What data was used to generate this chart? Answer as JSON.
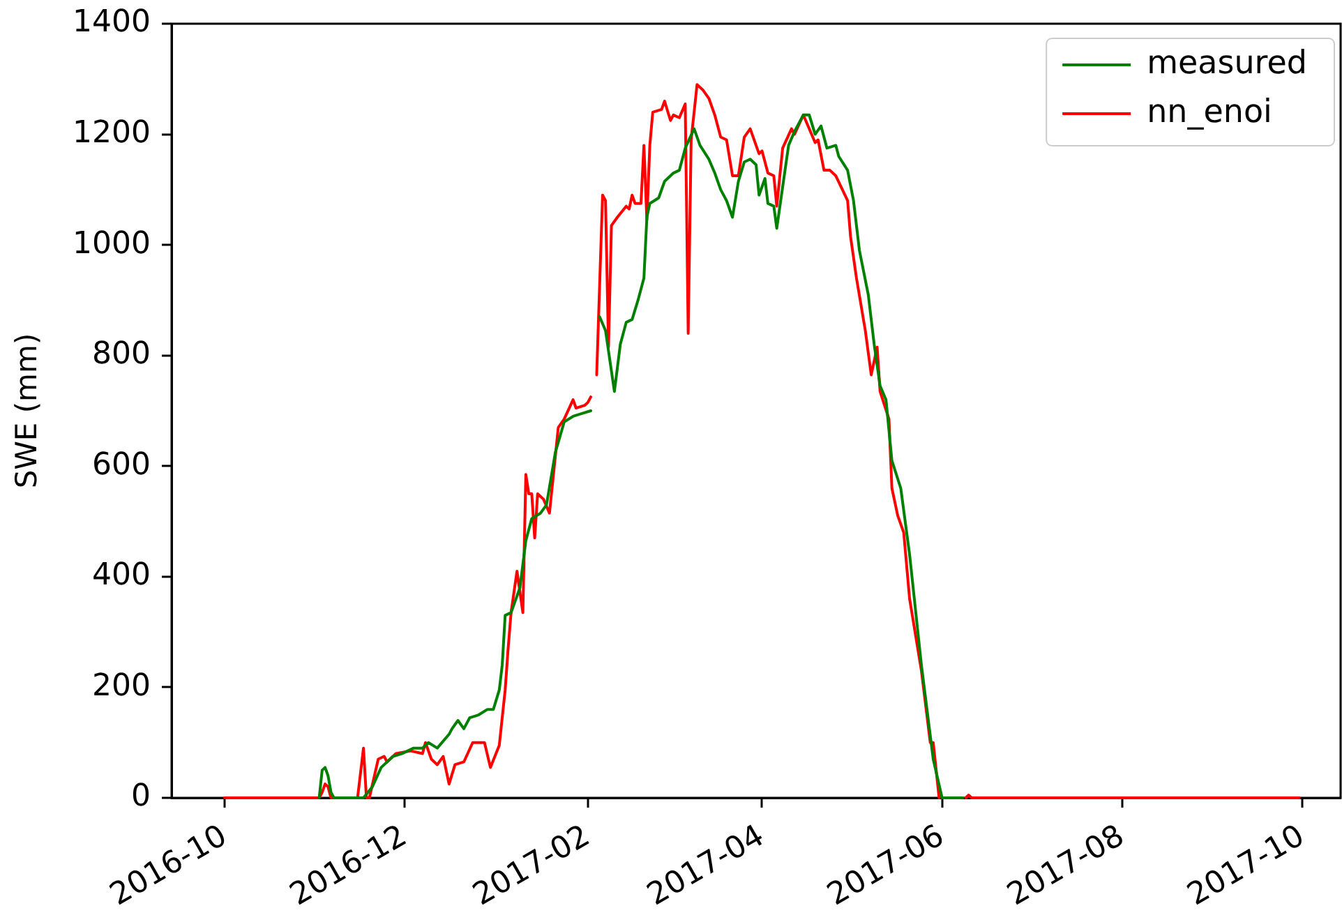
{
  "chart_data": {
    "type": "line",
    "ylabel": "SWE (mm)",
    "xlim": [
      "2016-09-13",
      "2017-10-14"
    ],
    "xticks": [
      "2016-10",
      "2016-12",
      "2017-02",
      "2017-04",
      "2017-06",
      "2017-08",
      "2017-10"
    ],
    "ylim": [
      0,
      1400
    ],
    "yticks": [
      0,
      200,
      400,
      600,
      800,
      1000,
      1200,
      1400
    ],
    "legend": "top right",
    "series": [
      {
        "name": "measured",
        "color": "#008000",
        "x": [
          "2016-11-02",
          "2016-11-03",
          "2016-11-04",
          "2016-11-05",
          "2016-11-06",
          "2016-11-07",
          "2016-11-17",
          "2016-11-20",
          "2016-11-23",
          "2016-11-27",
          "2016-11-30",
          "2016-12-04",
          "2016-12-07",
          "2016-12-09",
          "2016-12-12",
          "2016-12-16",
          "2016-12-17",
          "2016-12-19",
          "2016-12-21",
          "2016-12-23",
          "2016-12-26",
          "2016-12-29",
          "2016-12-31",
          "2017-01-02",
          "2017-01-03",
          "2017-01-04",
          "2017-01-06",
          "2017-01-08",
          "2017-01-09",
          "2017-01-11",
          "2017-01-13",
          "2017-01-16",
          "2017-01-18",
          "2017-01-21",
          "2017-01-24",
          "2017-01-27",
          "2017-01-30",
          "2017-02-02",
          "2017-02-03",
          "2017-02-05",
          "2017-02-07",
          "2017-02-10",
          "2017-02-12",
          "2017-02-14",
          "2017-02-16",
          "2017-02-18",
          "2017-02-20",
          "2017-02-21",
          "2017-02-22",
          "2017-02-25",
          "2017-02-27",
          "2017-03-02",
          "2017-03-04",
          "2017-03-06",
          "2017-03-09",
          "2017-03-11",
          "2017-03-14",
          "2017-03-16",
          "2017-03-18",
          "2017-03-20",
          "2017-03-22",
          "2017-03-24",
          "2017-03-26",
          "2017-03-28",
          "2017-03-30",
          "2017-03-31",
          "2017-04-02",
          "2017-04-03",
          "2017-04-05",
          "2017-04-06",
          "2017-04-08",
          "2017-04-10",
          "2017-04-12",
          "2017-04-15",
          "2017-04-17",
          "2017-04-19",
          "2017-04-21",
          "2017-04-23",
          "2017-04-26",
          "2017-04-27",
          "2017-04-30",
          "2017-05-02",
          "2017-05-04",
          "2017-05-07",
          "2017-05-09",
          "2017-05-11",
          "2017-05-13",
          "2017-05-15",
          "2017-05-18",
          "2017-05-21",
          "2017-05-25",
          "2017-05-29",
          "2017-06-01",
          "2017-06-08"
        ],
        "values": [
          0,
          50,
          55,
          40,
          10,
          0,
          0,
          20,
          55,
          75,
          80,
          90,
          90,
          100,
          90,
          115,
          125,
          140,
          125,
          145,
          150,
          160,
          160,
          195,
          240,
          330,
          335,
          365,
          380,
          465,
          505,
          515,
          530,
          625,
          680,
          690,
          695,
          700,
          null,
          870,
          845,
          735,
          820,
          860,
          865,
          900,
          940,
          1050,
          1075,
          1085,
          1115,
          1130,
          1135,
          1175,
          1210,
          1180,
          1155,
          1130,
          1100,
          1080,
          1050,
          1115,
          1150,
          1155,
          1145,
          1090,
          1120,
          1075,
          1070,
          1030,
          1105,
          1180,
          1205,
          1235,
          1235,
          1200,
          1215,
          1175,
          1180,
          1160,
          1135,
          1080,
          990,
          910,
          820,
          745,
          720,
          610,
          560,
          440,
          240,
          70,
          0,
          0
        ]
      },
      {
        "name": "nn_enoi",
        "color": "#ff0000",
        "x": [
          "2016-10-01",
          "2016-11-02",
          "2016-11-03",
          "2016-11-04",
          "2016-11-05",
          "2016-11-06",
          "2016-11-15",
          "2016-11-17",
          "2016-11-18",
          "2016-11-19",
          "2016-11-22",
          "2016-11-24",
          "2016-11-25",
          "2016-11-28",
          "2016-12-03",
          "2016-12-07",
          "2016-12-08",
          "2016-12-10",
          "2016-12-12",
          "2016-12-14",
          "2016-12-16",
          "2016-12-18",
          "2016-12-21",
          "2016-12-24",
          "2016-12-28",
          "2016-12-30",
          "2017-01-02",
          "2017-01-04",
          "2017-01-05",
          "2017-01-06",
          "2017-01-08",
          "2017-01-10",
          "2017-01-11",
          "2017-01-12",
          "2017-01-13",
          "2017-01-14",
          "2017-01-15",
          "2017-01-17",
          "2017-01-19",
          "2017-01-22",
          "2017-01-24",
          "2017-01-27",
          "2017-01-28",
          "2017-01-31",
          "2017-02-01",
          "2017-02-02",
          "2017-02-03",
          "2017-02-04",
          "2017-02-06",
          "2017-02-07",
          "2017-02-08",
          "2017-02-09",
          "2017-02-11",
          "2017-02-14",
          "2017-02-15",
          "2017-02-16",
          "2017-02-17",
          "2017-02-19",
          "2017-02-20",
          "2017-02-21",
          "2017-02-22",
          "2017-02-23",
          "2017-02-26",
          "2017-02-27",
          "2017-03-01",
          "2017-03-02",
          "2017-03-04",
          "2017-03-06",
          "2017-03-07",
          "2017-03-08",
          "2017-03-10",
          "2017-03-12",
          "2017-03-14",
          "2017-03-16",
          "2017-03-18",
          "2017-03-20",
          "2017-03-22",
          "2017-03-24",
          "2017-03-26",
          "2017-03-28",
          "2017-03-31",
          "2017-04-01",
          "2017-04-03",
          "2017-04-05",
          "2017-04-06",
          "2017-04-08",
          "2017-04-11",
          "2017-04-12",
          "2017-04-15",
          "2017-04-19",
          "2017-04-20",
          "2017-04-22",
          "2017-04-24",
          "2017-04-26",
          "2017-04-30",
          "2017-05-01",
          "2017-05-03",
          "2017-05-06",
          "2017-05-08",
          "2017-05-10",
          "2017-05-11",
          "2017-05-14",
          "2017-05-15",
          "2017-05-17",
          "2017-05-19",
          "2017-05-21",
          "2017-05-25",
          "2017-05-28",
          "2017-05-29",
          "2017-05-31",
          "2017-06-01",
          "2017-06-09",
          "2017-06-10",
          "2017-06-11",
          "2017-09-30"
        ],
        "values": [
          0,
          0,
          10,
          25,
          20,
          0,
          0,
          90,
          0,
          0,
          70,
          75,
          65,
          80,
          85,
          80,
          100,
          70,
          60,
          75,
          25,
          60,
          65,
          100,
          100,
          55,
          95,
          195,
          270,
          335,
          410,
          335,
          585,
          550,
          550,
          470,
          550,
          540,
          515,
          670,
          685,
          720,
          705,
          710,
          715,
          725,
          null,
          765,
          1090,
          1080,
          815,
          1035,
          1050,
          1070,
          1065,
          1090,
          1075,
          1075,
          1180,
          1045,
          1180,
          1240,
          1245,
          1260,
          1225,
          1235,
          1230,
          1255,
          840,
          1190,
          1290,
          1280,
          1265,
          1235,
          1195,
          1190,
          1125,
          1125,
          1195,
          1210,
          1165,
          1170,
          1130,
          1125,
          1070,
          1175,
          1210,
          1200,
          1235,
          1185,
          1190,
          1135,
          1135,
          1125,
          1080,
          1015,
          940,
          845,
          765,
          815,
          735,
          685,
          560,
          510,
          480,
          360,
          230,
          100,
          100,
          0,
          null,
          0,
          5,
          0,
          0
        ]
      }
    ]
  }
}
